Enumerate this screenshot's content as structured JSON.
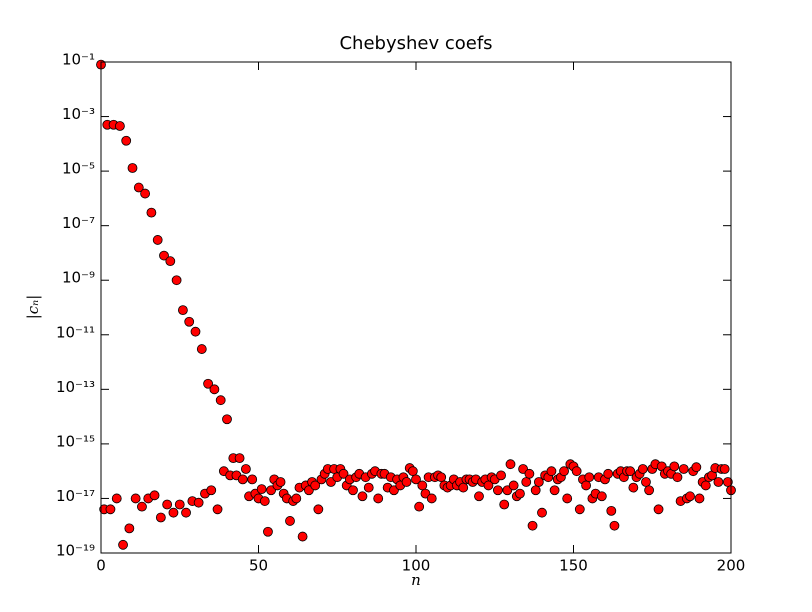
{
  "chart_data": {
    "type": "scatter",
    "title": "Chebyshev coefs",
    "xlabel": "n",
    "ylabel": "|cₙ|",
    "yscale": "log",
    "color": "#ff0000",
    "edgecolor": "#000000",
    "xlim": [
      0,
      200
    ],
    "xticks": [
      0,
      50,
      100,
      150,
      200
    ],
    "ylim": [
      1e-19,
      0.1
    ],
    "yticks": [
      {
        "value": 0.1,
        "label": "10⁻¹"
      },
      {
        "value": 0.001,
        "label": "10⁻³"
      },
      {
        "value": 1e-05,
        "label": "10⁻⁵"
      },
      {
        "value": 1e-07,
        "label": "10⁻⁷"
      },
      {
        "value": 1e-09,
        "label": "10⁻⁹"
      },
      {
        "value": 1e-11,
        "label": "10⁻¹¹"
      },
      {
        "value": 1e-13,
        "label": "10⁻¹³"
      },
      {
        "value": 1e-15,
        "label": "10⁻¹⁵"
      },
      {
        "value": 1e-17,
        "label": "10⁻¹⁷"
      },
      {
        "value": 1e-19,
        "label": "10⁻¹⁹"
      }
    ],
    "x": [
      0,
      1,
      2,
      3,
      4,
      5,
      6,
      7,
      8,
      9,
      10,
      11,
      12,
      13,
      14,
      15,
      16,
      17,
      18,
      19,
      20,
      21,
      22,
      23,
      24,
      25,
      26,
      27,
      28,
      29,
      30,
      31,
      32,
      33,
      34,
      35,
      36,
      37,
      38,
      39,
      40,
      41,
      42,
      43,
      44,
      45,
      46,
      47,
      48,
      49,
      50,
      51,
      52,
      53,
      54,
      55,
      56,
      57,
      58,
      59,
      60,
      61,
      62,
      63,
      64,
      65,
      66,
      67,
      68,
      69,
      70,
      71,
      72,
      73,
      74,
      75,
      76,
      77,
      78,
      79,
      80,
      81,
      82,
      83,
      84,
      85,
      86,
      87,
      88,
      89,
      90,
      91,
      92,
      93,
      94,
      95,
      96,
      97,
      98,
      99,
      100,
      101,
      102,
      103,
      104,
      105,
      106,
      107,
      108,
      109,
      110,
      111,
      112,
      113,
      114,
      115,
      116,
      117,
      118,
      119,
      120,
      121,
      122,
      123,
      124,
      125,
      126,
      127,
      128,
      129,
      130,
      131,
      132,
      133,
      134,
      135,
      136,
      137,
      138,
      139,
      140,
      141,
      142,
      143,
      144,
      145,
      146,
      147,
      148,
      149,
      150,
      151,
      152,
      153,
      154,
      155,
      156,
      157,
      158,
      159,
      160,
      161,
      162,
      163,
      164,
      165,
      166,
      167,
      168,
      169,
      170,
      171,
      172,
      173,
      174,
      175,
      176,
      177,
      178,
      179,
      180,
      181,
      182,
      183,
      184,
      185,
      186,
      187,
      188,
      189,
      190,
      191,
      192,
      193,
      194,
      195,
      196,
      197,
      198,
      199,
      200
    ],
    "values": [
      0.08,
      4e-18,
      0.0005,
      4e-18,
      0.0005,
      1e-17,
      0.00045,
      2e-19,
      0.00013,
      8e-19,
      1.3e-05,
      1e-17,
      2.5e-06,
      5e-18,
      1.5e-06,
      1e-17,
      3e-07,
      1.3e-17,
      3e-08,
      2e-18,
      8e-09,
      6e-18,
      5e-09,
      3e-18,
      1e-09,
      6e-18,
      8e-11,
      3e-18,
      3e-11,
      8e-18,
      1.3e-11,
      7e-18,
      3e-12,
      1.5e-17,
      1.6e-13,
      2e-17,
      1e-13,
      4e-18,
      4e-14,
      1e-16,
      8e-15,
      7e-17,
      3e-16,
      7e-17,
      3e-16,
      5e-17,
      1.2e-16,
      1.2e-17,
      5e-17,
      1.5e-17,
      1e-17,
      2.2e-17,
      8e-18,
      6e-19,
      2e-17,
      5e-17,
      3e-17,
      4e-17,
      1.5e-17,
      1e-17,
      1.5e-18,
      8e-18,
      1e-17,
      2.5e-17,
      4e-19,
      3e-17,
      2e-17,
      4e-17,
      3e-17,
      4e-18,
      5e-17,
      8e-17,
      1.2e-16,
      4e-17,
      1.2e-16,
      6e-17,
      1.2e-16,
      8e-17,
      3e-17,
      5e-17,
      2e-17,
      6e-17,
      8e-17,
      1.2e-17,
      6e-17,
      2.5e-17,
      8e-17,
      1e-16,
      1e-17,
      8e-17,
      8e-17,
      2.5e-17,
      6e-17,
      2e-17,
      5e-17,
      3e-17,
      6e-17,
      4e-17,
      1.3e-16,
      1e-16,
      5e-17,
      5e-18,
      3e-17,
      1.5e-17,
      6e-17,
      1e-17,
      6e-17,
      7e-17,
      6e-17,
      3e-17,
      2.5e-17,
      3e-17,
      5e-17,
      3e-17,
      4e-17,
      2.5e-17,
      5e-17,
      5e-17,
      4e-17,
      5e-17,
      1.2e-17,
      4e-17,
      5e-17,
      3e-17,
      6e-17,
      5e-17,
      2e-17,
      7e-17,
      6e-18,
      2e-17,
      1.8e-16,
      3e-17,
      1.2e-17,
      1.5e-17,
      1.2e-16,
      4e-17,
      8e-17,
      1e-18,
      2e-17,
      4e-17,
      3e-18,
      7e-17,
      6e-17,
      1e-16,
      2e-17,
      5e-17,
      6e-17,
      1e-16,
      1e-17,
      1.8e-16,
      1.5e-16,
      1e-16,
      4e-18,
      5e-17,
      3e-17,
      6e-17,
      1e-17,
      1.5e-17,
      6e-17,
      1.2e-17,
      5e-17,
      8e-17,
      3.5e-18,
      1e-18,
      8e-17,
      1e-16,
      6e-17,
      1e-16,
      1e-16,
      2.5e-17,
      6e-17,
      8e-17,
      1.2e-16,
      4e-17,
      2e-17,
      1.2e-16,
      1.8e-16,
      4e-18,
      1.5e-16,
      8e-17,
      1e-16,
      8e-17,
      1.5e-16,
      6e-17,
      8e-18,
      1.2e-16,
      1e-17,
      1.2e-17,
      1e-16,
      1.4e-16,
      1e-17,
      4e-17,
      3e-17,
      6e-17,
      7e-17,
      1.3e-16,
      4e-17,
      1.2e-16,
      1.2e-16,
      4e-17,
      2e-17
    ]
  }
}
